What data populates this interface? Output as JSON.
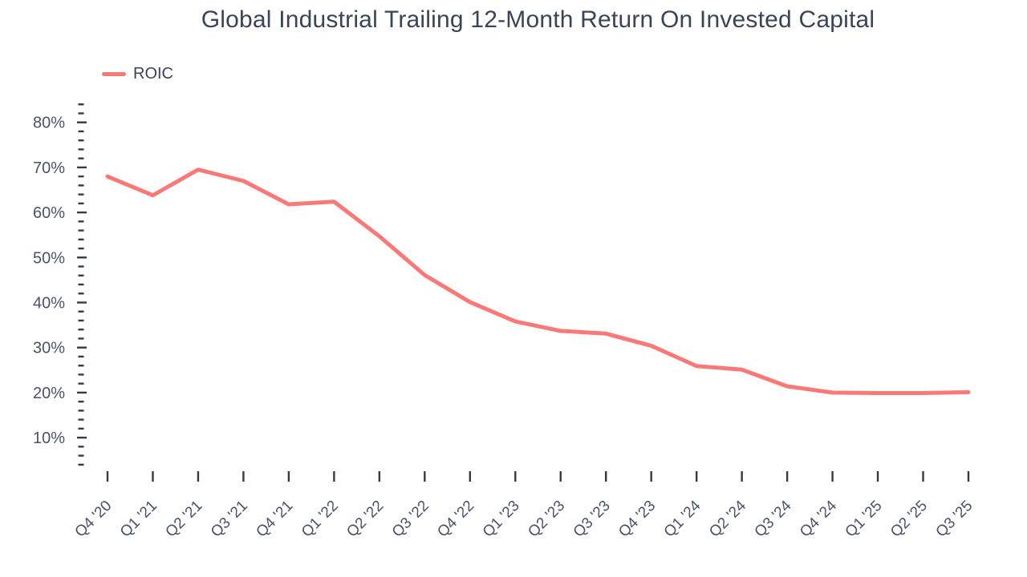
{
  "colors": {
    "background": "#ffffff",
    "line": "#f97878",
    "title_text": "#3a4457",
    "axis_text": "#4a5268",
    "tick": "#333a46"
  },
  "legend": {
    "items": [
      {
        "label": "ROIC",
        "color": "#f97878"
      }
    ]
  },
  "chart_data": {
    "type": "line",
    "title": "Global Industrial Trailing 12-Month Return On Invested Capital",
    "categories": [
      "Q4 '20",
      "Q1 '21",
      "Q2 '21",
      "Q3 '21",
      "Q4 '21",
      "Q1 '22",
      "Q2 '22",
      "Q3 '22",
      "Q4 '22",
      "Q1 '23",
      "Q2 '23",
      "Q3 '23",
      "Q4 '23",
      "Q1 '24",
      "Q2 '24",
      "Q3 '24",
      "Q4 '24",
      "Q1 '25",
      "Q2 '25",
      "Q3 '25"
    ],
    "series": [
      {
        "name": "ROIC",
        "color": "#f97878",
        "values": [
          68.0,
          63.8,
          69.5,
          67.0,
          61.8,
          62.4,
          54.7,
          46.1,
          40.1,
          35.8,
          33.7,
          33.1,
          30.4,
          25.9,
          25.1,
          21.4,
          20.0,
          19.9,
          19.9,
          20.1
        ]
      }
    ],
    "xlabel": "",
    "ylabel": "",
    "ylim": [
      3.5,
      84.5
    ],
    "y_axis": {
      "major_ticks": [
        {
          "value": 80,
          "label": "80%"
        },
        {
          "value": 70,
          "label": "70%"
        },
        {
          "value": 60,
          "label": "60%"
        },
        {
          "value": 50,
          "label": "50%"
        },
        {
          "value": 40,
          "label": "40%"
        },
        {
          "value": 30,
          "label": "30%"
        },
        {
          "value": 20,
          "label": "20%"
        },
        {
          "value": 10,
          "label": "10%"
        }
      ],
      "minor_step": 2,
      "minor_range": [
        4,
        84
      ]
    },
    "grid": false,
    "legend_position": "top-left"
  }
}
